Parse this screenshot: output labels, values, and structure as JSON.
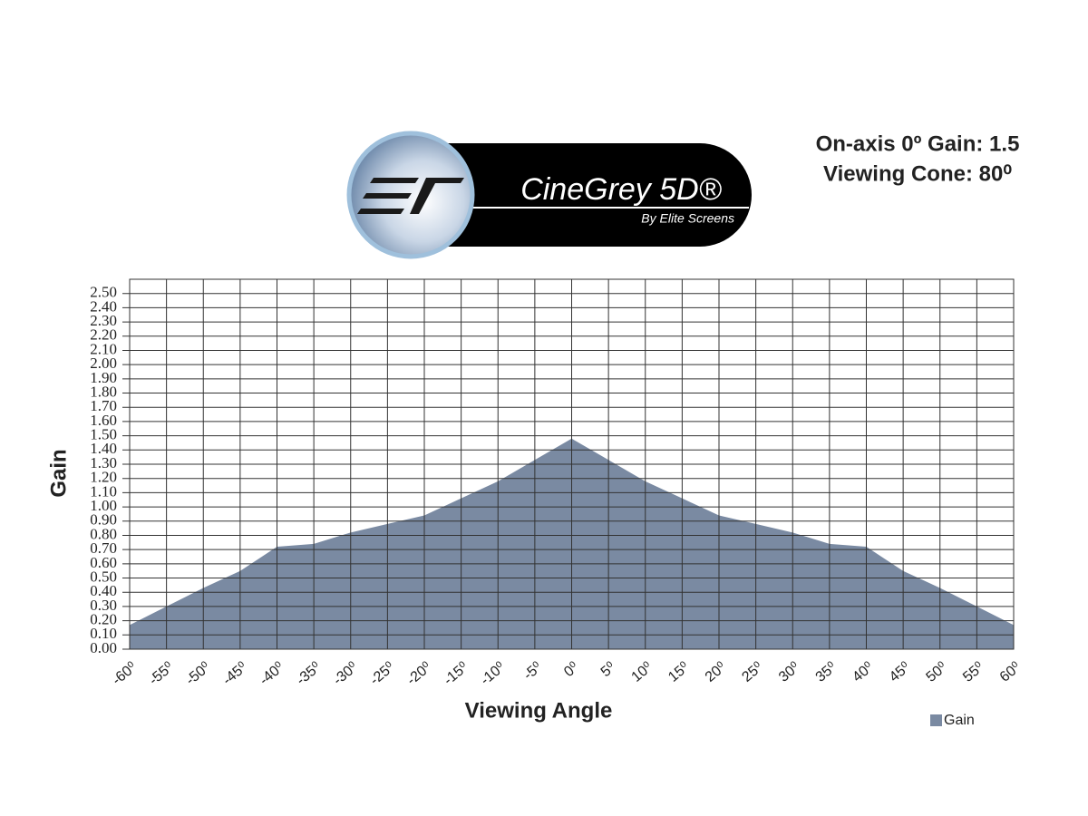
{
  "chart_data": {
    "type": "area",
    "brand": "CineGrey 5D®",
    "brand_tagline": "By Elite Screens",
    "annotations": [
      "On-axis 0º Gain: 1.5",
      "Viewing Cone: 80⁰"
    ],
    "xlabel": "Viewing Angle",
    "ylabel": "Gain",
    "x": [
      -60,
      -55,
      -50,
      -45,
      -40,
      -35,
      -30,
      -25,
      -20,
      -15,
      -10,
      -5,
      0,
      5,
      10,
      15,
      20,
      25,
      30,
      35,
      40,
      45,
      50,
      55,
      60
    ],
    "series": [
      {
        "name": "Gain",
        "color": "#7a8aa2",
        "values": [
          0.17,
          0.3,
          0.43,
          0.55,
          0.72,
          0.74,
          0.82,
          0.88,
          0.94,
          1.06,
          1.18,
          1.33,
          1.48,
          1.33,
          1.18,
          1.06,
          0.94,
          0.88,
          0.82,
          0.74,
          0.72,
          0.55,
          0.43,
          0.3,
          0.17
        ]
      }
    ],
    "xlim": [
      -60,
      60
    ],
    "xticks": [
      {
        "value": -60,
        "label": "-60⁰"
      },
      {
        "value": -55,
        "label": "-55⁰"
      },
      {
        "value": -50,
        "label": "-50⁰"
      },
      {
        "value": -45,
        "label": "-45⁰"
      },
      {
        "value": -40,
        "label": "-40⁰"
      },
      {
        "value": -35,
        "label": "-35⁰"
      },
      {
        "value": -30,
        "label": "-30⁰"
      },
      {
        "value": -25,
        "label": "-25⁰"
      },
      {
        "value": -20,
        "label": "-20⁰"
      },
      {
        "value": -15,
        "label": "-15⁰"
      },
      {
        "value": -10,
        "label": "-10⁰"
      },
      {
        "value": -5,
        "label": "-5⁰"
      },
      {
        "value": 0,
        "label": "0⁰"
      },
      {
        "value": 5,
        "label": "5⁰"
      },
      {
        "value": 10,
        "label": "10⁰"
      },
      {
        "value": 15,
        "label": "15⁰"
      },
      {
        "value": 20,
        "label": "20⁰"
      },
      {
        "value": 25,
        "label": "25⁰"
      },
      {
        "value": 30,
        "label": "30⁰"
      },
      {
        "value": 35,
        "label": "35⁰"
      },
      {
        "value": 40,
        "label": "40⁰"
      },
      {
        "value": 45,
        "label": "45⁰"
      },
      {
        "value": 50,
        "label": "50⁰"
      },
      {
        "value": 55,
        "label": "55⁰"
      },
      {
        "value": 60,
        "label": "60⁰"
      }
    ],
    "ylim": [
      0,
      2.6
    ],
    "yticks": [
      {
        "value": 0,
        "label": "0.00"
      },
      {
        "value": 0.1,
        "label": "0.10"
      },
      {
        "value": 0.2,
        "label": "0.20"
      },
      {
        "value": 0.3,
        "label": "0.30"
      },
      {
        "value": 0.4,
        "label": "0.40"
      },
      {
        "value": 0.5,
        "label": "0.50"
      },
      {
        "value": 0.6,
        "label": "0.60"
      },
      {
        "value": 0.7,
        "label": "0.70"
      },
      {
        "value": 0.8,
        "label": "0.80"
      },
      {
        "value": 0.9,
        "label": "0.90"
      },
      {
        "value": 1,
        "label": "1.00"
      },
      {
        "value": 1.1,
        "label": "1.10"
      },
      {
        "value": 1.2,
        "label": "1.20"
      },
      {
        "value": 1.3,
        "label": "1.30"
      },
      {
        "value": 1.4,
        "label": "1.40"
      },
      {
        "value": 1.5,
        "label": "1.50"
      },
      {
        "value": 1.6,
        "label": "1.60"
      },
      {
        "value": 1.7,
        "label": "1.70"
      },
      {
        "value": 1.8,
        "label": "1.80"
      },
      {
        "value": 1.9,
        "label": "1.90"
      },
      {
        "value": 2,
        "label": "2.00"
      },
      {
        "value": 2.1,
        "label": "2.10"
      },
      {
        "value": 2.2,
        "label": "2.20"
      },
      {
        "value": 2.3,
        "label": "2.30"
      },
      {
        "value": 2.4,
        "label": "2.40"
      },
      {
        "value": 2.5,
        "label": "2.50"
      }
    ],
    "grid": true,
    "legend": "bottom-right"
  }
}
